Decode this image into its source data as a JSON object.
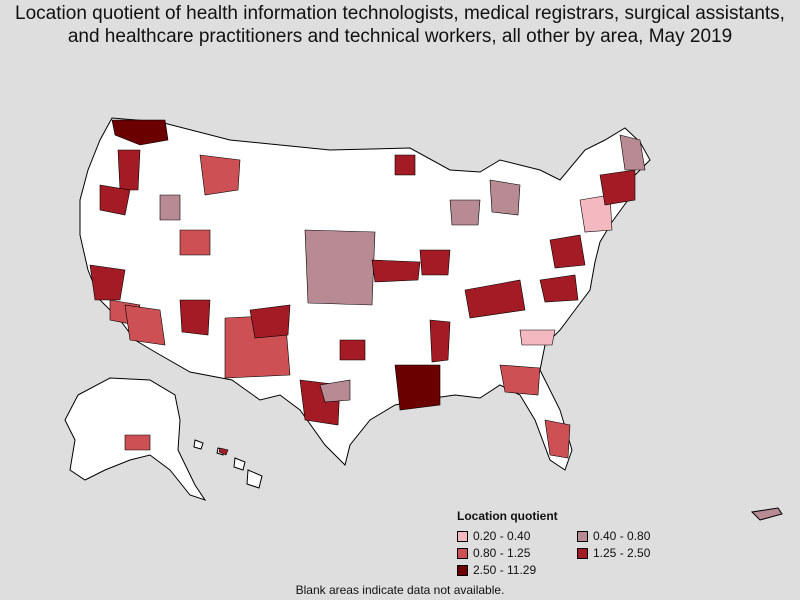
{
  "title": "Location quotient of health information technologists, medical registrars, surgical assistants, and healthcare practitioners and technical workers, all other by area, May 2019",
  "legend": {
    "title": "Location quotient",
    "items": [
      {
        "label": "0.20 - 0.40",
        "color": "#f4b8c0"
      },
      {
        "label": "0.40 - 0.80",
        "color": "#b88b94"
      },
      {
        "label": "0.80 - 1.25",
        "color": "#cd5055"
      },
      {
        "label": "1.25 - 2.50",
        "color": "#a31b24"
      },
      {
        "label": "2.50 - 11.29",
        "color": "#6b0000"
      }
    ]
  },
  "note": "Blank areas indicate data not available.",
  "colors": {
    "background": "#dedede",
    "blank": "#ffffff",
    "border": "#000000"
  }
}
